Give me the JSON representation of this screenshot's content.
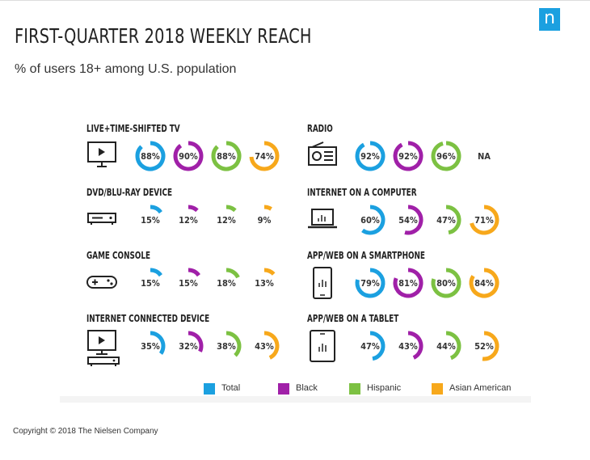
{
  "header": {
    "title": "FIRST-QUARTER 2018 WEEKLY REACH",
    "subtitle": "% of users 18+ among U.S. population",
    "logo_text": "n",
    "logo_color": "#1ba0e0"
  },
  "footer": {
    "copyright": "Copyright © 2018 The Nielsen Company"
  },
  "colors": {
    "Total": "#1ba0e0",
    "Black": "#a020a8",
    "Hispanic": "#7cc142",
    "Asian American": "#f7a81b"
  },
  "chart_data": {
    "type": "gauge-grid",
    "unit": "%",
    "series": [
      {
        "name": "Total"
      },
      {
        "name": "Black"
      },
      {
        "name": "Hispanic"
      },
      {
        "name": "Asian American"
      }
    ],
    "categories": [
      {
        "label": "LIVE+TIME-SHIFTED TV",
        "icon": "tv-icon",
        "values": [
          88,
          90,
          88,
          74
        ],
        "labels": [
          "88%",
          "90%",
          "88%",
          "74%"
        ]
      },
      {
        "label": "RADIO",
        "icon": "radio-icon",
        "values": [
          92,
          92,
          96,
          null
        ],
        "labels": [
          "92%",
          "92%",
          "96%",
          "NA"
        ]
      },
      {
        "label": "DVD/BLU-RAY DEVICE",
        "icon": "dvd-player-icon",
        "values": [
          15,
          12,
          12,
          9
        ],
        "labels": [
          "15%",
          "12%",
          "12%",
          "9%"
        ]
      },
      {
        "label": "INTERNET ON A COMPUTER",
        "icon": "laptop-icon",
        "values": [
          60,
          54,
          47,
          71
        ],
        "labels": [
          "60%",
          "54%",
          "47%",
          "71%"
        ]
      },
      {
        "label": "GAME CONSOLE",
        "icon": "game-controller-icon",
        "values": [
          15,
          15,
          18,
          13
        ],
        "labels": [
          "15%",
          "15%",
          "18%",
          "13%"
        ]
      },
      {
        "label": "APP/WEB ON A SMARTPHONE",
        "icon": "smartphone-icon",
        "values": [
          79,
          81,
          80,
          84
        ],
        "labels": [
          "79%",
          "81%",
          "80%",
          "84%"
        ]
      },
      {
        "label": "INTERNET CONNECTED DEVICE",
        "icon": "connected-tv-icon",
        "values": [
          35,
          32,
          38,
          43
        ],
        "labels": [
          "35%",
          "32%",
          "38%",
          "43%"
        ]
      },
      {
        "label": "APP/WEB ON A TABLET",
        "icon": "tablet-icon",
        "values": [
          47,
          43,
          44,
          52
        ],
        "labels": [
          "47%",
          "43%",
          "44%",
          "52%"
        ]
      }
    ],
    "legend": {
      "position": "bottom",
      "items": [
        "Total",
        "Black",
        "Hispanic",
        "Asian American"
      ]
    }
  }
}
